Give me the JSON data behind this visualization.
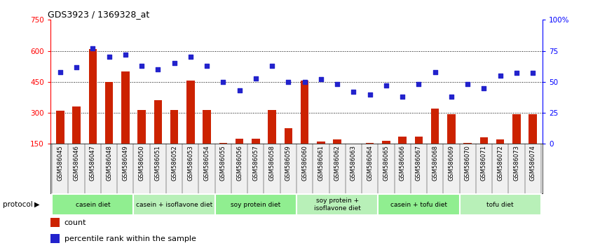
{
  "title": "GDS3923 / 1369328_at",
  "samples": [
    "GSM586045",
    "GSM586046",
    "GSM586047",
    "GSM586048",
    "GSM586049",
    "GSM586050",
    "GSM586051",
    "GSM586052",
    "GSM586053",
    "GSM586054",
    "GSM586055",
    "GSM586056",
    "GSM586057",
    "GSM586058",
    "GSM586059",
    "GSM586060",
    "GSM586061",
    "GSM586062",
    "GSM586063",
    "GSM586064",
    "GSM586065",
    "GSM586066",
    "GSM586067",
    "GSM586068",
    "GSM586069",
    "GSM586070",
    "GSM586071",
    "GSM586072",
    "GSM586073",
    "GSM586074"
  ],
  "counts": [
    310,
    330,
    610,
    450,
    500,
    315,
    360,
    315,
    455,
    315,
    155,
    175,
    175,
    315,
    225,
    455,
    160,
    170,
    105,
    155,
    165,
    185,
    185,
    320,
    295,
    155,
    180,
    170,
    295,
    295
  ],
  "percentile": [
    58,
    62,
    77,
    70,
    72,
    63,
    60,
    65,
    70,
    63,
    50,
    43,
    53,
    63,
    50,
    50,
    52,
    48,
    42,
    40,
    47,
    38,
    48,
    58,
    38,
    48,
    45,
    55,
    57,
    57
  ],
  "groups": [
    {
      "label": "casein diet",
      "start": 0,
      "end": 5,
      "color": "#90ee90"
    },
    {
      "label": "casein + isoflavone diet",
      "start": 5,
      "end": 10,
      "color": "#b8f0b8"
    },
    {
      "label": "soy protein diet",
      "start": 10,
      "end": 15,
      "color": "#90ee90"
    },
    {
      "label": "soy protein +\nisoflavone diet",
      "start": 15,
      "end": 20,
      "color": "#b8f0b8"
    },
    {
      "label": "casein + tofu diet",
      "start": 20,
      "end": 25,
      "color": "#90ee90"
    },
    {
      "label": "tofu diet",
      "start": 25,
      "end": 30,
      "color": "#b8f0b8"
    }
  ],
  "bar_color": "#cc2200",
  "dot_color": "#2222cc",
  "ylim_left": [
    150,
    750
  ],
  "ylim_right": [
    0,
    100
  ],
  "yticks_left": [
    150,
    300,
    450,
    600,
    750
  ],
  "ytick_labels_left": [
    "150",
    "300",
    "450",
    "600",
    "750"
  ],
  "ytick_labels_right": [
    "0",
    "25",
    "50",
    "75",
    "100%"
  ],
  "hlines": [
    300,
    450,
    600
  ],
  "bar_width": 0.5,
  "protocol_label": "protocol",
  "legend_count_label": "count",
  "legend_pct_label": "percentile rank within the sample",
  "bg_color": "#f0f0f0"
}
